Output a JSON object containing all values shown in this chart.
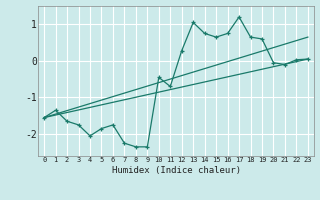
{
  "bg_color": "#cceaea",
  "grid_color": "#ffffff",
  "line_color": "#1a7a6a",
  "marker_color": "#1a7a6a",
  "xlabel": "Humidex (Indice chaleur)",
  "xlim": [
    -0.5,
    23.5
  ],
  "ylim": [
    -2.6,
    1.5
  ],
  "yticks": [
    -2,
    -1,
    0,
    1
  ],
  "xticks": [
    0,
    1,
    2,
    3,
    4,
    5,
    6,
    7,
    8,
    9,
    10,
    11,
    12,
    13,
    14,
    15,
    16,
    17,
    18,
    19,
    20,
    21,
    22,
    23
  ],
  "main_x": [
    0,
    1,
    2,
    3,
    4,
    5,
    6,
    7,
    8,
    9,
    10,
    11,
    12,
    13,
    14,
    15,
    16,
    17,
    18,
    19,
    20,
    21,
    22,
    23
  ],
  "main_y": [
    -1.55,
    -1.35,
    -1.65,
    -1.75,
    -2.05,
    -1.85,
    -1.75,
    -2.25,
    -2.35,
    -2.35,
    -0.45,
    -0.7,
    0.28,
    1.05,
    0.75,
    0.65,
    0.75,
    1.2,
    0.65,
    0.6,
    -0.05,
    -0.1,
    0.03,
    0.05
  ],
  "line1_x": [
    0,
    23
  ],
  "line1_y": [
    -1.55,
    0.05
  ],
  "line2_x": [
    0,
    23
  ],
  "line2_y": [
    -1.55,
    0.65
  ]
}
